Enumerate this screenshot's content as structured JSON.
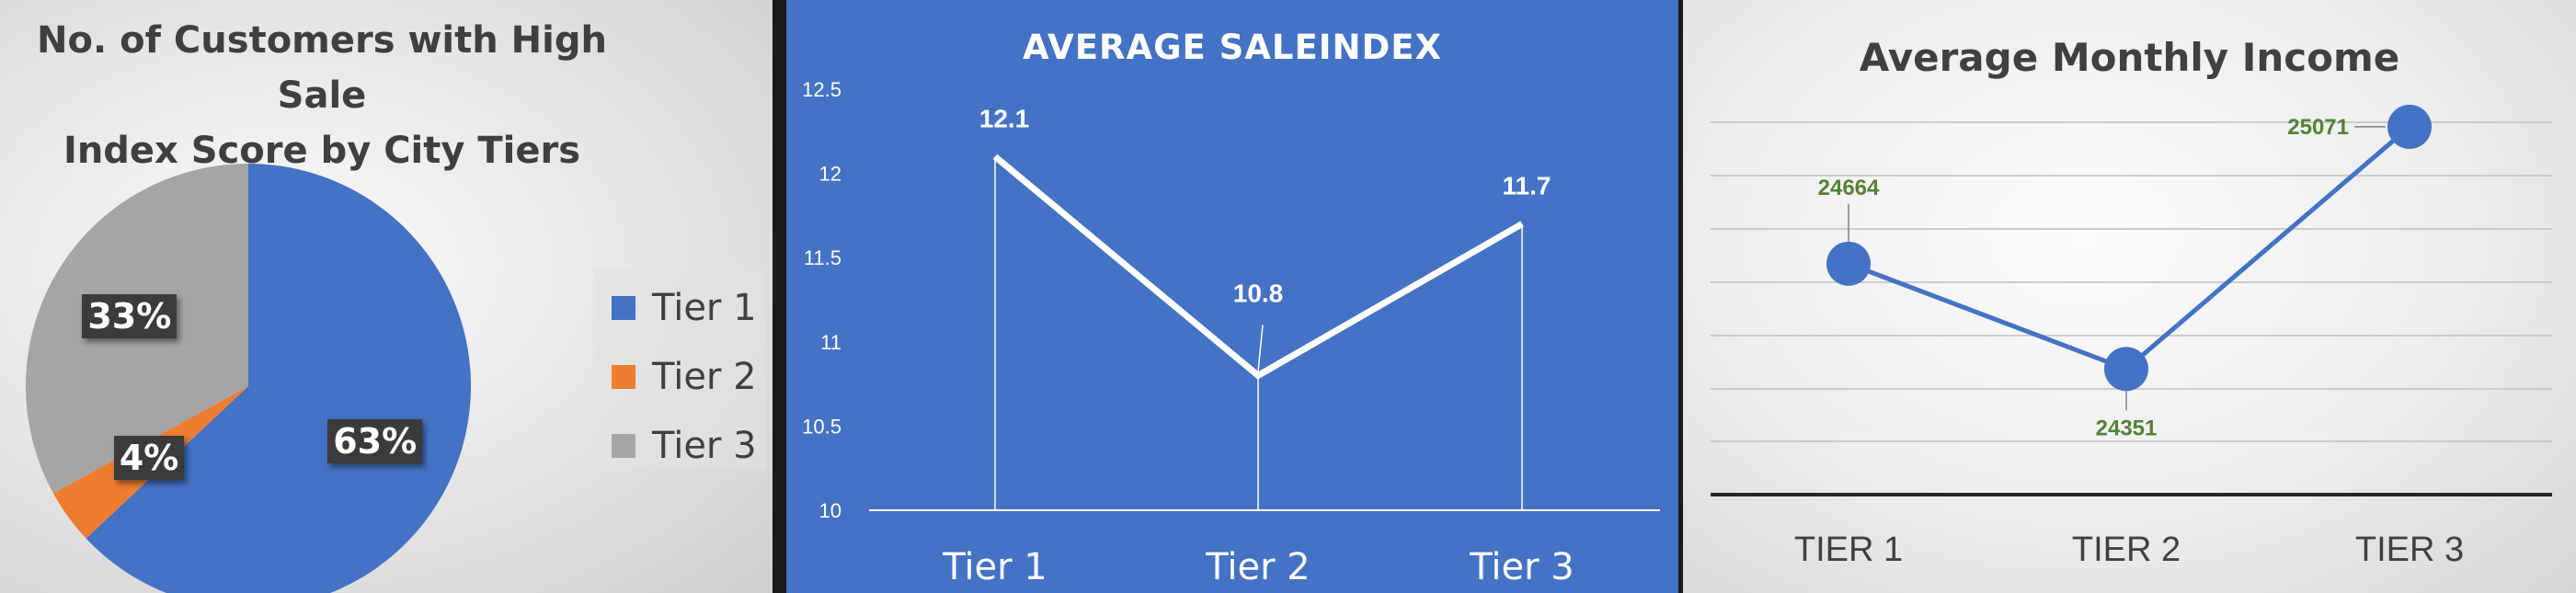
{
  "chart_data": [
    {
      "type": "pie",
      "title": "No. of Customers with High Sale Index Score by City Tiers",
      "title_lines": [
        "No. of Customers with High Sale",
        "Index Score by City Tiers"
      ],
      "categories": [
        "Tier 1",
        "Tier 2",
        "Tier 3"
      ],
      "values": [
        63,
        4,
        33
      ],
      "labels": [
        "63%",
        "4%",
        "33%"
      ],
      "colors": [
        "#4472c4",
        "#ed7d31",
        "#a5a5a5"
      ],
      "legend": "right"
    },
    {
      "type": "line",
      "title": "AVERAGE SALEINDEX",
      "categories": [
        "Tier 1",
        "Tier 2",
        "Tier 3"
      ],
      "values": [
        12.1,
        10.8,
        11.7
      ],
      "data_labels": [
        "12.1",
        "10.8",
        "11.7"
      ],
      "ylim": [
        10,
        12.5
      ],
      "yticks": [
        "10",
        "10.5",
        "11",
        "11.5",
        "12",
        "12.5"
      ],
      "colors": {
        "background": "#4472c4",
        "line": "#ffffff"
      },
      "grid": false
    },
    {
      "type": "line",
      "title": "Average Monthly Income",
      "categories": [
        "TIER 1",
        "TIER 2",
        "TIER 3"
      ],
      "values": [
        24664,
        24351,
        25071
      ],
      "data_labels": [
        "24664",
        "24351",
        "25071"
      ],
      "colors": {
        "line": "#4472c4",
        "labels": "#548235"
      },
      "grid": true
    }
  ]
}
